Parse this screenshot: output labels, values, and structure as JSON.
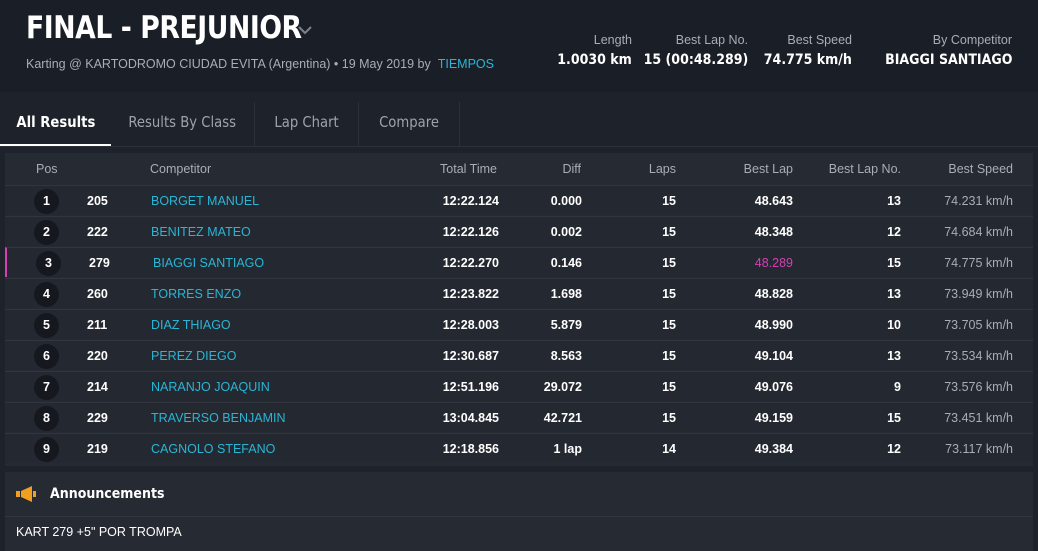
{
  "header": {
    "title": "FINAL - PREJUNIOR",
    "subtitle": "Karting @ KARTODROMO CIUDAD EVITA (Argentina) • 19 May 2019 by",
    "subtitle_link": "TIEMPOS",
    "stats": [
      {
        "label": "Length",
        "value": "1.0030 km"
      },
      {
        "label": "Best Lap No.",
        "value": "15 (00:48.289)"
      },
      {
        "label": "Best Speed",
        "value": "74.775 km/h"
      },
      {
        "label": "By Competitor",
        "value": "BIAGGI SANTIAGO"
      }
    ]
  },
  "tabs": [
    {
      "label": "All Results",
      "active": true
    },
    {
      "label": "Results By Class",
      "active": false
    },
    {
      "label": "Lap Chart",
      "active": false
    },
    {
      "label": "Compare",
      "active": false
    }
  ],
  "table": {
    "columns": {
      "pos": "Pos",
      "competitor": "Competitor",
      "total_time": "Total Time",
      "diff": "Diff",
      "laps": "Laps",
      "best_lap": "Best Lap",
      "best_lap_no": "Best Lap No.",
      "best_speed": "Best Speed"
    },
    "rows": [
      {
        "pos": "1",
        "num": "205",
        "name": "BORGET MANUEL",
        "total": "12:22.124",
        "diff": "0.000",
        "laps": "15",
        "best_lap": "48.643",
        "best_lap_no": "13",
        "speed": "74.231 km/h",
        "fastest": false
      },
      {
        "pos": "2",
        "num": "222",
        "name": "BENITEZ MATEO",
        "total": "12:22.126",
        "diff": "0.002",
        "laps": "15",
        "best_lap": "48.348",
        "best_lap_no": "12",
        "speed": "74.684 km/h",
        "fastest": false
      },
      {
        "pos": "3",
        "num": "279",
        "name": "BIAGGI SANTIAGO",
        "total": "12:22.270",
        "diff": "0.146",
        "laps": "15",
        "best_lap": "48.289",
        "best_lap_no": "15",
        "speed": "74.775 km/h",
        "fastest": true
      },
      {
        "pos": "4",
        "num": "260",
        "name": "TORRES ENZO",
        "total": "12:23.822",
        "diff": "1.698",
        "laps": "15",
        "best_lap": "48.828",
        "best_lap_no": "13",
        "speed": "73.949 km/h",
        "fastest": false
      },
      {
        "pos": "5",
        "num": "211",
        "name": "DIAZ THIAGO",
        "total": "12:28.003",
        "diff": "5.879",
        "laps": "15",
        "best_lap": "48.990",
        "best_lap_no": "10",
        "speed": "73.705 km/h",
        "fastest": false
      },
      {
        "pos": "6",
        "num": "220",
        "name": "PEREZ DIEGO",
        "total": "12:30.687",
        "diff": "8.563",
        "laps": "15",
        "best_lap": "49.104",
        "best_lap_no": "13",
        "speed": "73.534 km/h",
        "fastest": false
      },
      {
        "pos": "7",
        "num": "214",
        "name": "NARANJO JOAQUIN",
        "total": "12:51.196",
        "diff": "29.072",
        "laps": "15",
        "best_lap": "49.076",
        "best_lap_no": "9",
        "speed": "73.576 km/h",
        "fastest": false
      },
      {
        "pos": "8",
        "num": "229",
        "name": "TRAVERSO BENJAMIN",
        "total": "13:04.845",
        "diff": "42.721",
        "laps": "15",
        "best_lap": "49.159",
        "best_lap_no": "15",
        "speed": "73.451 km/h",
        "fastest": false
      },
      {
        "pos": "9",
        "num": "219",
        "name": "CAGNOLO STEFANO",
        "total": "12:18.856",
        "diff": "1 lap",
        "laps": "14",
        "best_lap": "49.384",
        "best_lap_no": "12",
        "speed": "73.117 km/h",
        "fastest": false
      }
    ]
  },
  "announcements": {
    "title": "Announcements",
    "text": "KART 279 +5\" POR TROMPA"
  },
  "colors": {
    "accent_link": "#29b6d6",
    "fastest_lap": "#d63fb4",
    "announcement_icon": "#f0a020"
  },
  "icons": {
    "title_dropdown": "chevron-down-icon",
    "announcements": "megaphone-icon"
  }
}
